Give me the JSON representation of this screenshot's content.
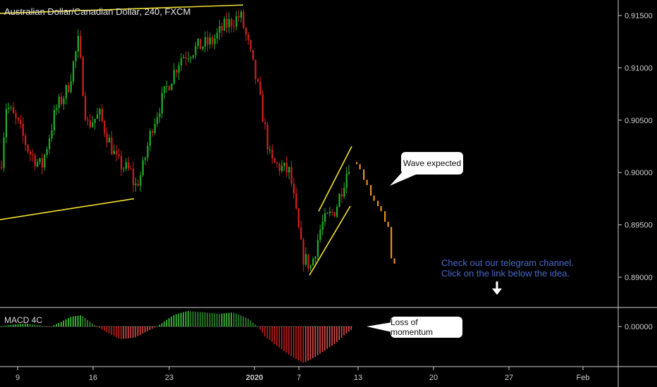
{
  "title": "Australian Dollar/Canadian Dollar, 240, FXCM",
  "indicator_label": "MACD 4C",
  "callouts": {
    "wave": "Wave expected",
    "momentum": "Loss of momentum"
  },
  "note": {
    "line1": "Check out our telegram channel.",
    "line2": "Click on the link below the idea."
  },
  "colors": {
    "bull": "#22b02a",
    "bear": "#d62020",
    "projection": "#e89020",
    "trendline": "#f2e030",
    "note": "#4a68c9"
  },
  "chart_data": {
    "type": "candlestick",
    "y_axis": {
      "ticks": [
        "0.91500",
        "0.91000",
        "0.90500",
        "0.90000",
        "0.89500",
        "0.89000"
      ],
      "ylim": [
        0.8865,
        0.9165
      ]
    },
    "macd_axis": {
      "ticks": [
        "0.00000"
      ]
    },
    "x_axis": {
      "labels": [
        "9",
        "16",
        "23",
        "2020",
        "7",
        "13",
        "20",
        "27",
        "Feb"
      ]
    },
    "price_path": [
      [
        0,
        0.9005
      ],
      [
        8,
        0.9065
      ],
      [
        25,
        0.9045
      ],
      [
        40,
        0.902
      ],
      [
        58,
        0.9005
      ],
      [
        78,
        0.906
      ],
      [
        95,
        0.908
      ],
      [
        110,
        0.9125
      ],
      [
        122,
        0.9045
      ],
      [
        140,
        0.9055
      ],
      [
        165,
        0.901
      ],
      [
        185,
        0.9
      ],
      [
        190,
        0.8985
      ],
      [
        200,
        0.9
      ],
      [
        215,
        0.9045
      ],
      [
        235,
        0.908
      ],
      [
        255,
        0.911
      ],
      [
        280,
        0.912
      ],
      [
        300,
        0.9125
      ],
      [
        318,
        0.914
      ],
      [
        340,
        0.915
      ],
      [
        350,
        0.9125
      ],
      [
        365,
        0.908
      ],
      [
        383,
        0.901
      ],
      [
        410,
        0.9
      ],
      [
        428,
        0.892
      ],
      [
        440,
        0.891
      ],
      [
        455,
        0.895
      ],
      [
        475,
        0.8965
      ],
      [
        497,
        0.9015
      ]
    ],
    "projection": [
      [
        505,
        0.9005
      ],
      [
        515,
        0.899
      ],
      [
        525,
        0.8975
      ],
      [
        535,
        0.8965
      ],
      [
        545,
        0.895
      ],
      [
        554,
        0.8915
      ]
    ],
    "trendlines": [
      {
        "from": [
          0,
          0.9152
        ],
        "to": [
          345,
          0.916
        ]
      },
      {
        "from": [
          0,
          0.8955
        ],
        "to": [
          190,
          0.8975
        ]
      },
      {
        "from": [
          439,
          0.8902
        ],
        "to": [
          497,
          0.8968
        ]
      },
      {
        "from": [
          452,
          0.8963
        ],
        "to": [
          499,
          0.9025
        ]
      }
    ],
    "macd_histogram_sign": "positive around 9–14, 23–2020; negative after 2020 with shrinking bars near 13"
  }
}
